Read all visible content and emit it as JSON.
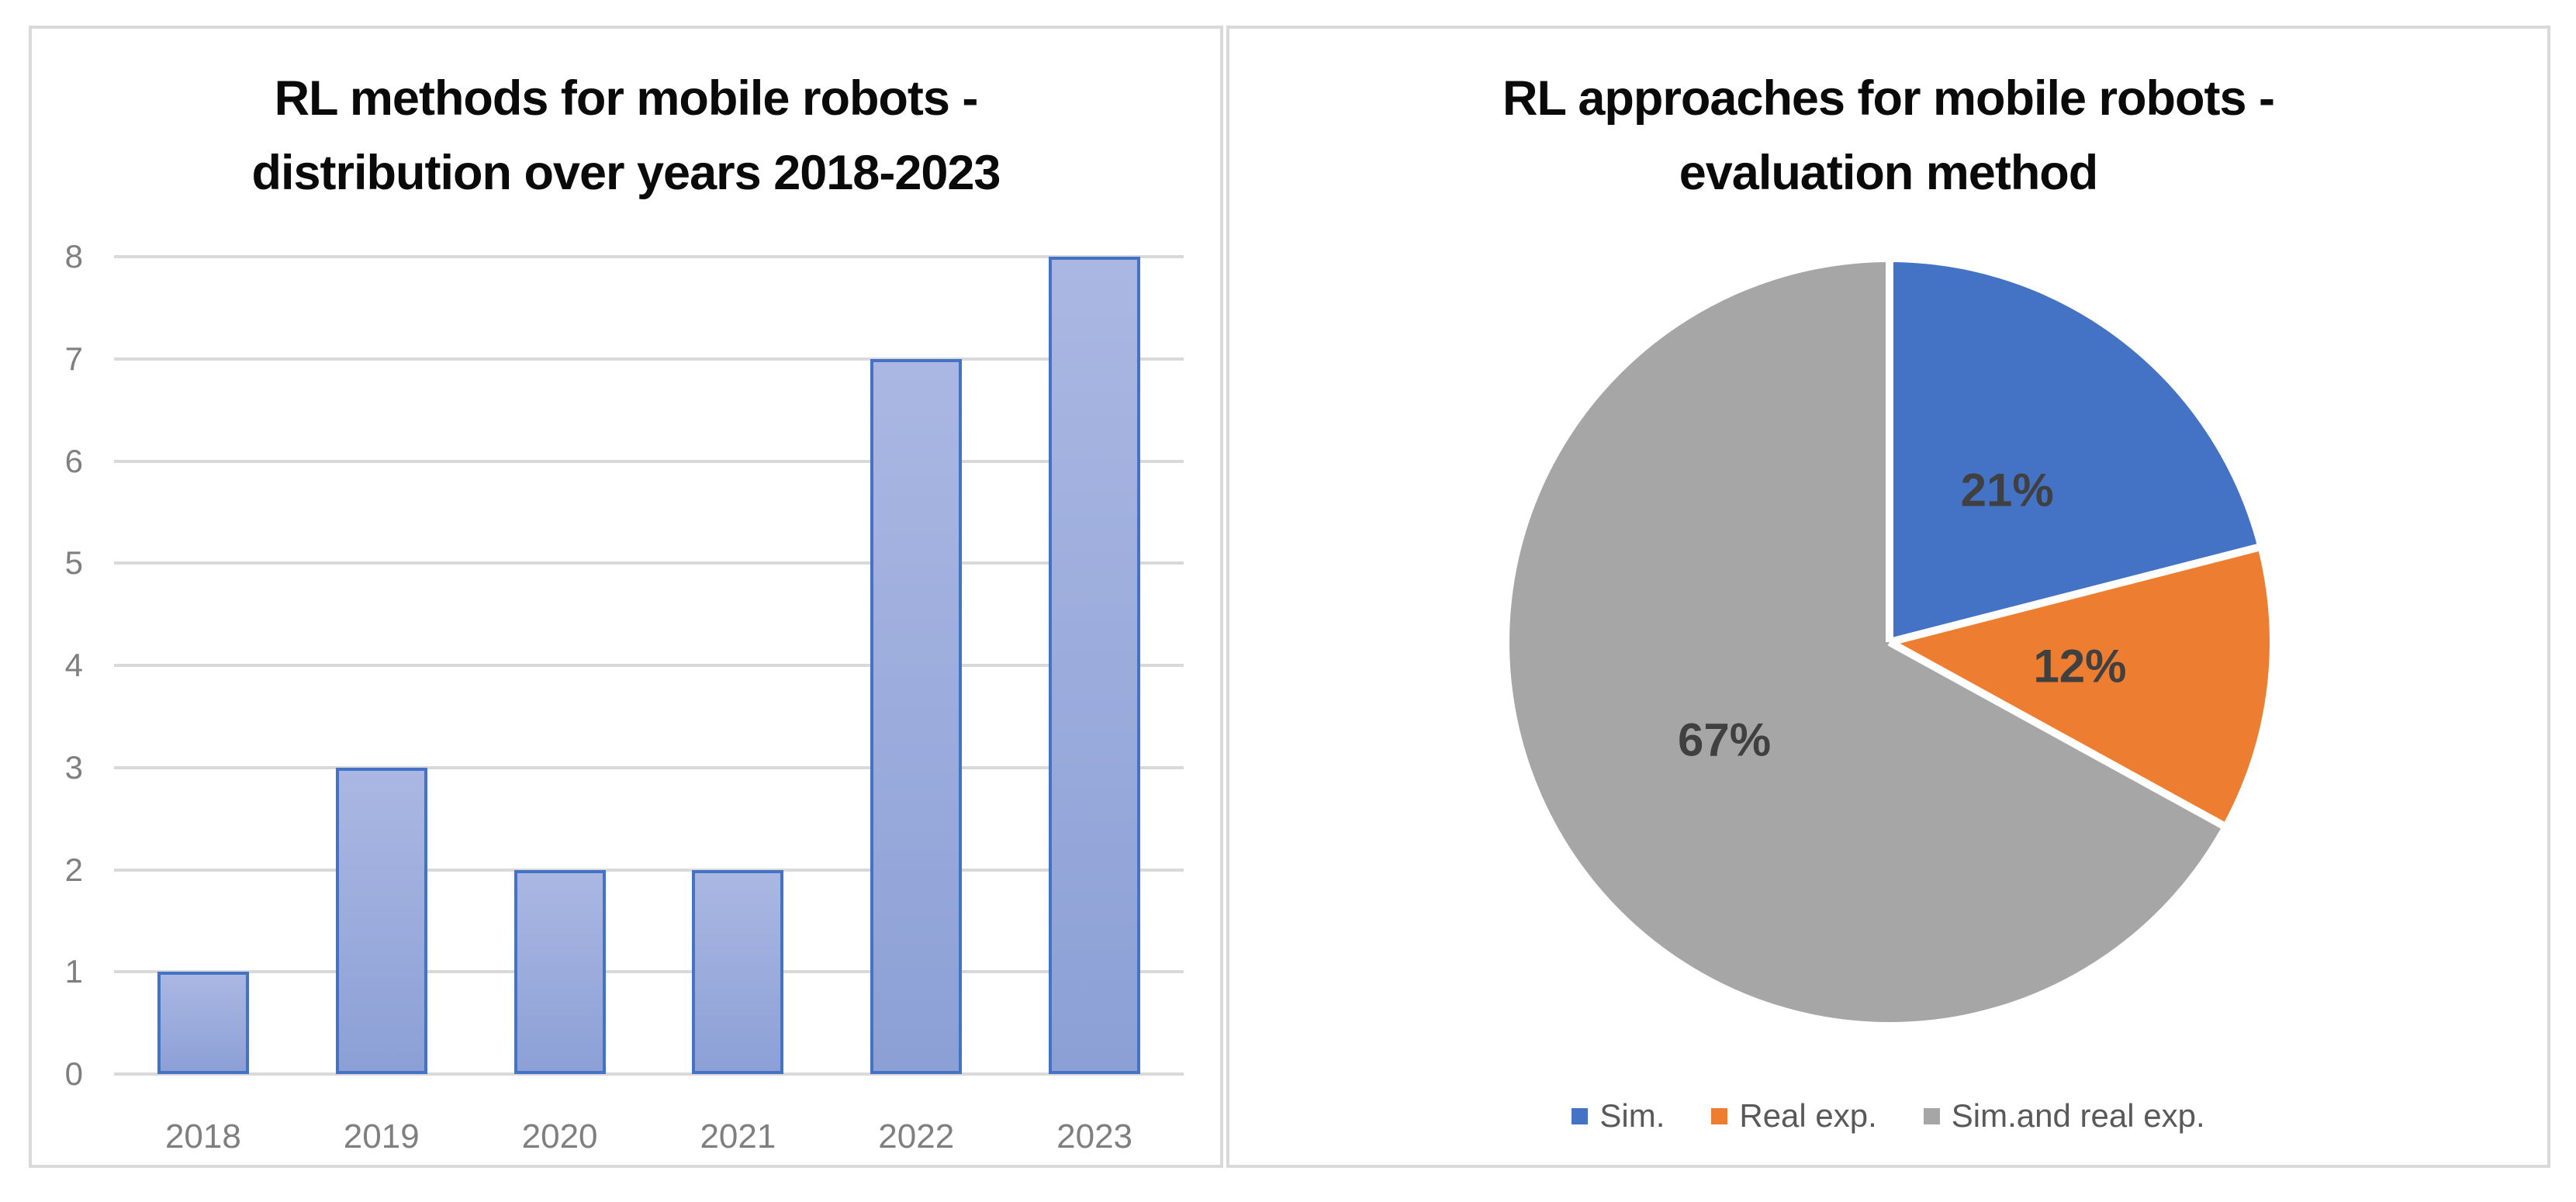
{
  "chart_data": [
    {
      "type": "bar",
      "title": "RL methods for mobile robots - distribution over years 2018-2023",
      "title_lines": [
        "RL methods for mobile robots -",
        "distribution over years 2018-2023"
      ],
      "categories": [
        "2018",
        "2019",
        "2020",
        "2021",
        "2022",
        "2023"
      ],
      "values": [
        1,
        3,
        2,
        2,
        7,
        8
      ],
      "y_ticks": [
        "0",
        "1",
        "2",
        "3",
        "4",
        "5",
        "6",
        "7",
        "8"
      ],
      "ylim": [
        0,
        8
      ],
      "xlabel": "",
      "ylabel": "",
      "grid": true,
      "legend": "none",
      "colors": {
        "bar_fill_top": "#aab7e2",
        "bar_fill_bottom": "#8ca0d6",
        "bar_border": "#4472c4",
        "gridline": "#d9d9d9",
        "axis_text": "#7f7f7f",
        "title_text": "#0a0a0a"
      }
    },
    {
      "type": "pie",
      "title": "RL approaches for mobile robots - evaluation method",
      "title_lines": [
        "RL approaches for mobile robots -",
        "evaluation method"
      ],
      "series": [
        {
          "name": "Sim.",
          "pct": 21,
          "color": "#4472c4",
          "data_label": "21%"
        },
        {
          "name": "Real exp.",
          "pct": 12,
          "color": "#ed7d31",
          "data_label": "12%"
        },
        {
          "name": "Sim.and real exp.",
          "pct": 67,
          "color": "#a6a6a6",
          "data_label": "67%"
        }
      ],
      "start_angle_deg": 0,
      "direction": "clockwise",
      "legend_position": "bottom",
      "separator_color": "#ffffff",
      "colors": {
        "data_label": "#404040",
        "legend_text": "#595959",
        "title_text": "#0a0a0a"
      }
    }
  ]
}
